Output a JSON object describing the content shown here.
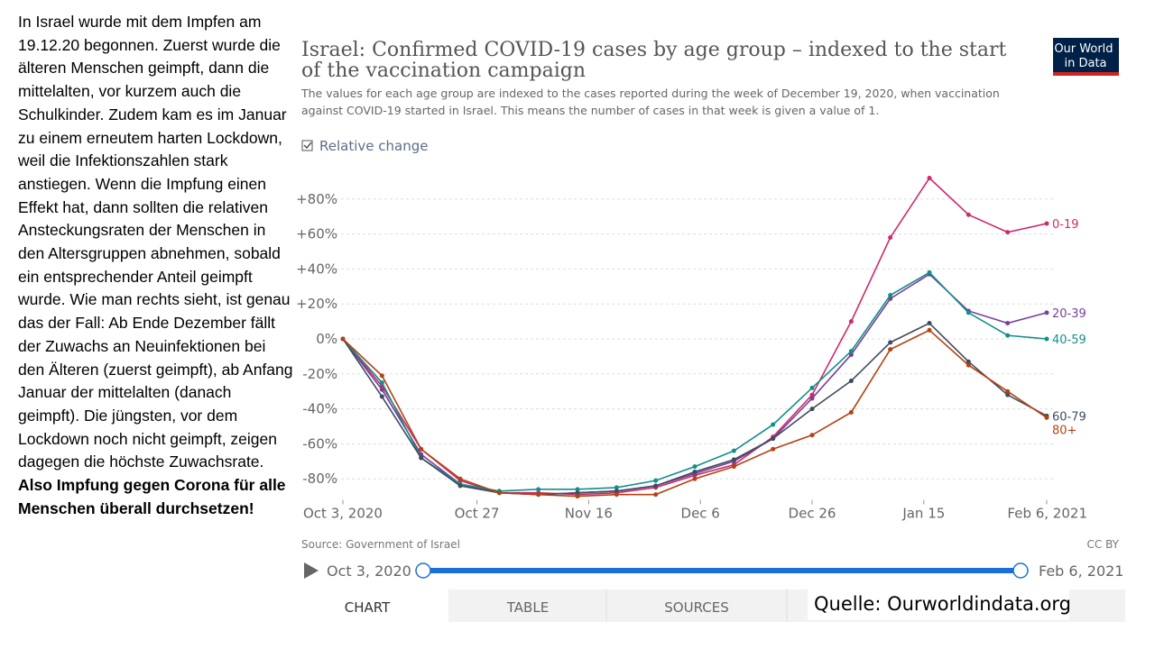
{
  "slide": {
    "text": "In Israel wurde mit dem Impfen am 19.12.20 begonnen. Zuerst wurde die älteren Menschen geimpft, dann die mittelalten, vor kurzem auch die Schulkinder. Zudem kam es im Januar zu einem erneutem harten Lockdown, weil die Infektionszahlen stark anstiegen. Wenn die Impfung einen Effekt hat, dann sollten die relativen Ansteckungsraten der Menschen in den Altersgruppen abnehmen, sobald ein entsprechender Anteil geimpft wurde. Wie man rechts sieht, ist genau das der Fall: Ab Ende Dezember fällt der Zuwachs an Neuinfektionen bei den Älteren (zuerst geimpft), ab Anfang Januar der mittelalten (danach geimpft). Die jüngsten, vor dem Lockdown noch nicht geimpft, zeigen dagegen die höchste Zuwachsrate.",
    "text_bold": "Also Impfung gegen Corona für alle Menschen überall durchsetzen!",
    "quelle": "Quelle: Ourworldindata.org"
  },
  "owid": {
    "logo": "Our World in Data",
    "checkbox": "Relative change",
    "source": "Source: Government of Israel",
    "license": "CC BY",
    "timeline": {
      "start": "Oct 3, 2020",
      "end": "Feb 6, 2021"
    },
    "tabs": [
      "CHART",
      "TABLE",
      "SOURCES"
    ]
  },
  "chart_data": {
    "type": "line",
    "title": "Israel: Confirmed COVID-19 cases by age group – indexed to the start of the vaccination campaign",
    "subtitle": "The values for each age group are indexed to the cases reported during the week of December 19, 2020, when vaccination against COVID-19 started in Israel. This means the number of cases in that week is given a value of 1.",
    "x": [
      "2020-10-03",
      "2020-10-10",
      "2020-10-17",
      "2020-10-24",
      "2020-10-31",
      "2020-11-07",
      "2020-11-14",
      "2020-11-21",
      "2020-11-28",
      "2020-12-05",
      "2020-12-12",
      "2020-12-19",
      "2020-12-26",
      "2021-01-02",
      "2021-01-09",
      "2021-01-16",
      "2021-01-23",
      "2021-01-30",
      "2021-02-06"
    ],
    "xlim": [
      "2020-10-03",
      "2021-02-06"
    ],
    "xticks": [
      {
        "value": "2020-10-03",
        "label": "Oct 3, 2020"
      },
      {
        "value": "2020-10-27",
        "label": "Oct 27"
      },
      {
        "value": "2020-11-16",
        "label": "Nov 16"
      },
      {
        "value": "2020-12-06",
        "label": "Dec 6"
      },
      {
        "value": "2020-12-26",
        "label": "Dec 26"
      },
      {
        "value": "2021-01-15",
        "label": "Jan 15"
      },
      {
        "value": "2021-02-06",
        "label": "Feb 6, 2021"
      }
    ],
    "ylim": [
      -92,
      95
    ],
    "yticks": [
      {
        "value": -80,
        "label": "-80%"
      },
      {
        "value": -60,
        "label": "-60%"
      },
      {
        "value": -40,
        "label": "-40%"
      },
      {
        "value": -20,
        "label": "-20%"
      },
      {
        "value": 0,
        "label": "0%"
      },
      {
        "value": 20,
        "label": "+20%"
      },
      {
        "value": 40,
        "label": "+40%"
      },
      {
        "value": 60,
        "label": "+60%"
      },
      {
        "value": 80,
        "label": "+80%"
      }
    ],
    "grid": true,
    "series": [
      {
        "name": "0-19",
        "color": "#ce2a6c",
        "values": [
          0,
          -27,
          -63,
          -81,
          -88,
          -88,
          -89,
          -88,
          -85,
          -78,
          -72,
          -56,
          -32,
          10,
          58,
          92,
          71,
          61,
          66
        ]
      },
      {
        "name": "20-39",
        "color": "#7a3e99",
        "values": [
          0,
          -29,
          -66,
          -83,
          -88,
          -89,
          -88,
          -87,
          -84,
          -77,
          -70,
          -57,
          -34,
          -9,
          23,
          37,
          16,
          9,
          15
        ]
      },
      {
        "name": "40-59",
        "color": "#138f8a",
        "values": [
          0,
          -25,
          -68,
          -83,
          -87,
          -86,
          -86,
          -85,
          -81,
          -73,
          -64,
          -49,
          -28,
          -7,
          25,
          38,
          15,
          2,
          0
        ]
      },
      {
        "name": "60-79",
        "color": "#3e4c5e",
        "values": [
          0,
          -33,
          -68,
          -84,
          -88,
          -89,
          -88,
          -87,
          -84,
          -76,
          -69,
          -57,
          -40,
          -24,
          -2,
          9,
          -13,
          -32,
          -44
        ]
      },
      {
        "name": "80+",
        "color": "#b34212",
        "values": [
          0,
          -21,
          -63,
          -80,
          -88,
          -89,
          -90,
          -89,
          -89,
          -80,
          -73,
          -63,
          -55,
          -42,
          -6,
          5,
          -15,
          -30,
          -45
        ]
      }
    ]
  }
}
